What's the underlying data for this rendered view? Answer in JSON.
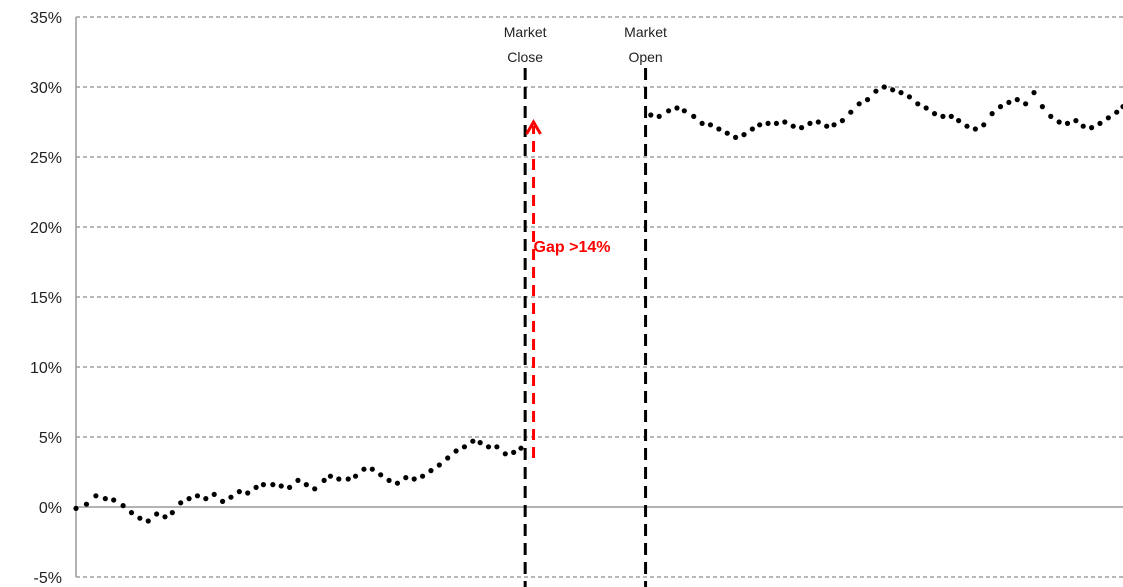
{
  "chart_data": {
    "type": "scatter",
    "ylim": [
      -5,
      35
    ],
    "yticks": [
      35,
      30,
      25,
      20,
      15,
      10,
      5,
      0,
      -5
    ],
    "ytick_labels": [
      "35%",
      "30%",
      "25%",
      "20%",
      "15%",
      "10%",
      "5%",
      "0%",
      "-5%"
    ],
    "grid": "horizontal-dashed",
    "xlim": [
      0,
      100
    ],
    "series": [
      {
        "color": "#000000",
        "points": [
          [
            0.0,
            -0.1
          ],
          [
            1.0,
            0.2
          ],
          [
            1.9,
            0.8
          ],
          [
            2.8,
            0.6
          ],
          [
            3.6,
            0.5
          ],
          [
            4.5,
            0.1
          ],
          [
            5.3,
            -0.4
          ],
          [
            6.1,
            -0.8
          ],
          [
            6.9,
            -1.0
          ],
          [
            7.7,
            -0.5
          ],
          [
            8.5,
            -0.7
          ],
          [
            9.2,
            -0.4
          ],
          [
            10.0,
            0.3
          ],
          [
            10.8,
            0.6
          ],
          [
            11.6,
            0.8
          ],
          [
            12.4,
            0.6
          ],
          [
            13.2,
            0.9
          ],
          [
            14.0,
            0.4
          ],
          [
            14.8,
            0.7
          ],
          [
            15.6,
            1.1
          ],
          [
            16.4,
            1.0
          ],
          [
            17.2,
            1.4
          ],
          [
            17.9,
            1.6
          ],
          [
            18.8,
            1.6
          ],
          [
            19.6,
            1.5
          ],
          [
            20.4,
            1.4
          ],
          [
            21.2,
            1.9
          ],
          [
            22.0,
            1.6
          ],
          [
            22.8,
            1.3
          ],
          [
            23.7,
            1.9
          ],
          [
            24.3,
            2.2
          ],
          [
            25.1,
            2.0
          ],
          [
            26.0,
            2.0
          ],
          [
            26.7,
            2.2
          ],
          [
            27.5,
            2.7
          ],
          [
            28.3,
            2.7
          ],
          [
            29.1,
            2.3
          ],
          [
            29.9,
            1.9
          ],
          [
            30.7,
            1.7
          ],
          [
            31.5,
            2.1
          ],
          [
            32.3,
            2.0
          ],
          [
            33.1,
            2.2
          ],
          [
            33.9,
            2.6
          ],
          [
            34.7,
            3.0
          ],
          [
            35.5,
            3.5
          ],
          [
            36.3,
            4.0
          ],
          [
            37.1,
            4.3
          ],
          [
            37.9,
            4.7
          ],
          [
            38.6,
            4.6
          ],
          [
            39.4,
            4.3
          ],
          [
            40.2,
            4.3
          ],
          [
            41.0,
            3.8
          ],
          [
            41.8,
            3.9
          ],
          [
            42.5,
            4.2
          ],
          [
            54.9,
            28.0
          ],
          [
            55.7,
            27.9
          ],
          [
            56.6,
            28.3
          ],
          [
            57.4,
            28.5
          ],
          [
            58.1,
            28.3
          ],
          [
            59.0,
            27.9
          ],
          [
            59.8,
            27.4
          ],
          [
            60.6,
            27.3
          ],
          [
            61.4,
            27.0
          ],
          [
            62.2,
            26.7
          ],
          [
            63.0,
            26.4
          ],
          [
            63.8,
            26.6
          ],
          [
            64.6,
            27.0
          ],
          [
            65.3,
            27.3
          ],
          [
            66.1,
            27.4
          ],
          [
            66.9,
            27.4
          ],
          [
            67.7,
            27.5
          ],
          [
            68.5,
            27.2
          ],
          [
            69.3,
            27.1
          ],
          [
            70.1,
            27.4
          ],
          [
            70.9,
            27.5
          ],
          [
            71.7,
            27.2
          ],
          [
            72.4,
            27.3
          ],
          [
            73.2,
            27.6
          ],
          [
            74.0,
            28.2
          ],
          [
            74.8,
            28.8
          ],
          [
            75.6,
            29.1
          ],
          [
            76.4,
            29.7
          ],
          [
            77.2,
            30.0
          ],
          [
            78.0,
            29.8
          ],
          [
            78.8,
            29.6
          ],
          [
            79.6,
            29.3
          ],
          [
            80.4,
            28.8
          ],
          [
            81.2,
            28.5
          ],
          [
            82.0,
            28.1
          ],
          [
            82.8,
            27.9
          ],
          [
            83.6,
            27.9
          ],
          [
            84.3,
            27.6
          ],
          [
            85.1,
            27.2
          ],
          [
            85.9,
            27.0
          ],
          [
            86.7,
            27.3
          ],
          [
            87.5,
            28.1
          ],
          [
            88.3,
            28.6
          ],
          [
            89.1,
            28.9
          ],
          [
            89.9,
            29.1
          ],
          [
            90.7,
            28.8
          ],
          [
            91.5,
            29.6
          ],
          [
            92.3,
            28.6
          ],
          [
            93.1,
            27.9
          ],
          [
            93.9,
            27.5
          ],
          [
            94.7,
            27.4
          ],
          [
            95.5,
            27.6
          ],
          [
            96.2,
            27.2
          ],
          [
            97.0,
            27.1
          ],
          [
            97.8,
            27.4
          ],
          [
            98.6,
            27.8
          ],
          [
            99.4,
            28.2
          ],
          [
            100.0,
            28.6
          ]
        ]
      }
    ],
    "vertical_lines": [
      {
        "x": 42.9,
        "label_line1": "Market",
        "label_line2": "Close",
        "color": "#000000"
      },
      {
        "x": 54.4,
        "label_line1": "Market",
        "label_line2": "Open",
        "color": "#000000"
      }
    ],
    "annotations": [
      {
        "text": "Gap >14%",
        "x": 43.7,
        "y_from": 3.5,
        "y_to": 27.5,
        "color": "#ff0000"
      }
    ]
  }
}
